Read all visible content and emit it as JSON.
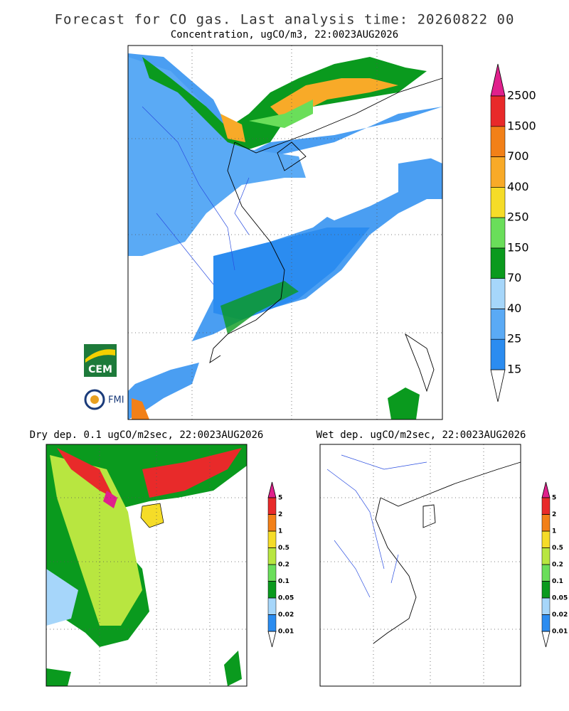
{
  "header": {
    "title": "Forecast for CO gas. Last analysis time: 20260822 00"
  },
  "panels": [
    {
      "title": "Concentration, ugCO/m3, 22:0023AUG2026",
      "colorbar": {
        "levels": [
          15,
          25,
          40,
          70,
          150,
          250,
          400,
          700,
          1500,
          2500
        ],
        "colors": [
          "#2b8cf0",
          "#5aaaf5",
          "#a6d6fa",
          "#0a9a1e",
          "#6ade5a",
          "#f5dc28",
          "#f8aa28",
          "#f28018",
          "#e82a2a"
        ],
        "over_color": "#e0208c",
        "under_color": "#ffffff"
      }
    },
    {
      "title": "Dry dep. 0.1 ugCO/m2sec, 22:0023AUG2026",
      "colorbar": {
        "levels": [
          0.01,
          0.02,
          0.05,
          0.1,
          0.2,
          0.5,
          1,
          2,
          5
        ],
        "colors": [
          "#2b8cf0",
          "#a6d6fa",
          "#0a9a1e",
          "#6ade5a",
          "#b8e640",
          "#f5dc28",
          "#f28018",
          "#e82a2a"
        ],
        "over_color": "#e0208c",
        "under_color": "#ffffff"
      }
    },
    {
      "title": "Wet dep. ugCO/m2sec, 22:0023AUG2026",
      "colorbar": {
        "levels": [
          0.01,
          0.02,
          0.05,
          0.1,
          0.2,
          0.5,
          1,
          2,
          5
        ],
        "colors": [
          "#2b8cf0",
          "#a6d6fa",
          "#0a9a1e",
          "#6ade5a",
          "#b8e640",
          "#f5dc28",
          "#f28018",
          "#e82a2a"
        ],
        "over_color": "#e0208c",
        "under_color": "#ffffff"
      }
    }
  ],
  "logos": [
    "CEM",
    "FMI"
  ]
}
